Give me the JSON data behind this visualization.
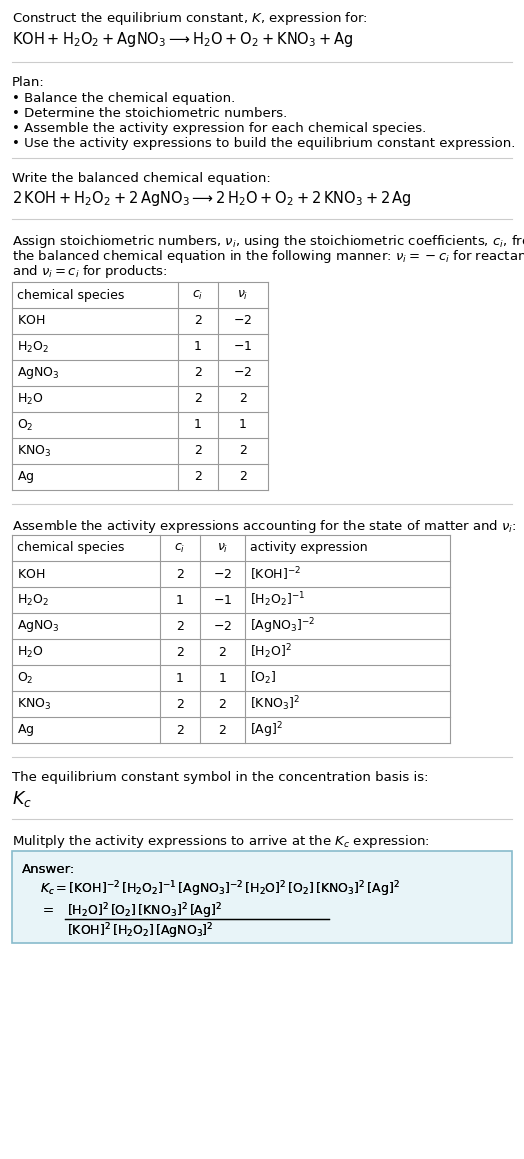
{
  "title_line1": "Construct the equilibrium constant, $K$, expression for:",
  "title_line2": "$\\mathrm{KOH + H_2O_2 + AgNO_3 \\longrightarrow H_2O + O_2 + KNO_3 + Ag}$",
  "plan_header": "Plan:",
  "plan_items": [
    "Balance the chemical equation.",
    "Determine the stoichiometric numbers.",
    "Assemble the activity expression for each chemical species.",
    "Use the activity expressions to build the equilibrium constant expression."
  ],
  "balanced_header": "Write the balanced chemical equation:",
  "balanced_eq": "$2\\,\\mathrm{KOH + H_2O_2 + 2\\,AgNO_3 \\longrightarrow 2\\,H_2O + O_2 + 2\\,KNO_3 + 2\\,Ag}$",
  "stoich_header_parts": [
    "Assign stoichiometric numbers, $\\nu_i$, using the stoichiometric coefficients, $c_i$, from",
    "the balanced chemical equation in the following manner: $\\nu_i = -c_i$ for reactants",
    "and $\\nu_i = c_i$ for products:"
  ],
  "table1_headers": [
    "chemical species",
    "$c_i$",
    "$\\nu_i$"
  ],
  "table1_rows": [
    [
      "$\\mathrm{KOH}$",
      "2",
      "$-2$"
    ],
    [
      "$\\mathrm{H_2O_2}$",
      "1",
      "$-1$"
    ],
    [
      "$\\mathrm{AgNO_3}$",
      "2",
      "$-2$"
    ],
    [
      "$\\mathrm{H_2O}$",
      "2",
      "2"
    ],
    [
      "$\\mathrm{O_2}$",
      "1",
      "1"
    ],
    [
      "$\\mathrm{KNO_3}$",
      "2",
      "2"
    ],
    [
      "$\\mathrm{Ag}$",
      "2",
      "2"
    ]
  ],
  "activity_header": "Assemble the activity expressions accounting for the state of matter and $\\nu_i$:",
  "table2_headers": [
    "chemical species",
    "$c_i$",
    "$\\nu_i$",
    "activity expression"
  ],
  "table2_rows": [
    [
      "$\\mathrm{KOH}$",
      "2",
      "$-2$",
      "$[\\mathrm{KOH}]^{-2}$"
    ],
    [
      "$\\mathrm{H_2O_2}$",
      "1",
      "$-1$",
      "$[\\mathrm{H_2O_2}]^{-1}$"
    ],
    [
      "$\\mathrm{AgNO_3}$",
      "2",
      "$-2$",
      "$[\\mathrm{AgNO_3}]^{-2}$"
    ],
    [
      "$\\mathrm{H_2O}$",
      "2",
      "2",
      "$[\\mathrm{H_2O}]^2$"
    ],
    [
      "$\\mathrm{O_2}$",
      "1",
      "1",
      "$[\\mathrm{O_2}]$"
    ],
    [
      "$\\mathrm{KNO_3}$",
      "2",
      "2",
      "$[\\mathrm{KNO_3}]^2$"
    ],
    [
      "$\\mathrm{Ag}$",
      "2",
      "2",
      "$[\\mathrm{Ag}]^2$"
    ]
  ],
  "kc_header": "The equilibrium constant symbol in the concentration basis is:",
  "kc_symbol": "$K_c$",
  "multiply_header": "Mulitply the activity expressions to arrive at the $K_c$ expression:",
  "answer_label": "Answer:",
  "answer_line1": "$K_c = [\\mathrm{KOH}]^{-2}\\,[\\mathrm{H_2O_2}]^{-1}\\,[\\mathrm{AgNO_3}]^{-2}\\,[\\mathrm{H_2O}]^2\\,[\\mathrm{O_2}]\\,[\\mathrm{KNO_3}]^2\\,[\\mathrm{Ag}]^2$",
  "answer_eq_lhs": "$=$",
  "answer_line2_num": "$[\\mathrm{H_2O}]^2\\,[\\mathrm{O_2}]\\,[\\mathrm{KNO_3}]^2\\,[\\mathrm{Ag}]^2$",
  "answer_line2_den": "$[\\mathrm{KOH}]^2\\,[\\mathrm{H_2O_2}]\\,[\\mathrm{AgNO_3}]^2$",
  "bg_color": "#ffffff",
  "answer_box_color": "#e8f4f8",
  "answer_box_border": "#88bbcc",
  "sep_line_color": "#cccccc",
  "table_line_color": "#999999",
  "text_color": "#000000",
  "font_size": 9.5,
  "small_font": 9.0
}
